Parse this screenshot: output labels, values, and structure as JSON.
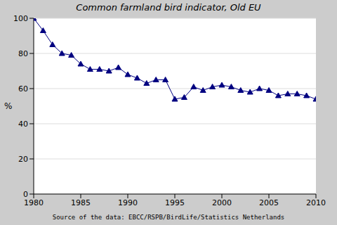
{
  "chart_data": {
    "type": "line",
    "title": "Common farmland bird indicator, Old EU",
    "y_label": "%",
    "source": "Source of the data: EBCC/RSPB/BirdLife/Statistics Netherlands",
    "x": [
      1980,
      1981,
      1982,
      1983,
      1984,
      1985,
      1986,
      1987,
      1988,
      1989,
      1990,
      1991,
      1992,
      1993,
      1994,
      1995,
      1996,
      1997,
      1998,
      1999,
      2000,
      2001,
      2002,
      2003,
      2004,
      2005,
      2006,
      2007,
      2008,
      2009,
      2010
    ],
    "values": [
      100,
      93,
      85,
      80,
      79,
      74,
      71,
      71,
      70,
      72,
      68,
      66,
      63,
      65,
      65,
      54,
      55,
      61,
      59,
      61,
      62,
      61,
      59,
      58,
      60,
      59,
      56,
      57,
      57,
      56,
      54
    ],
    "color": "#000080",
    "marker": "triangle",
    "xlim": [
      1980,
      2010
    ],
    "xticks": [
      1980,
      1985,
      1990,
      1995,
      2000,
      2005,
      2010
    ],
    "ylim": [
      0,
      100
    ],
    "yticks": [
      0,
      20,
      40,
      60,
      80,
      100
    ],
    "grid": true
  }
}
